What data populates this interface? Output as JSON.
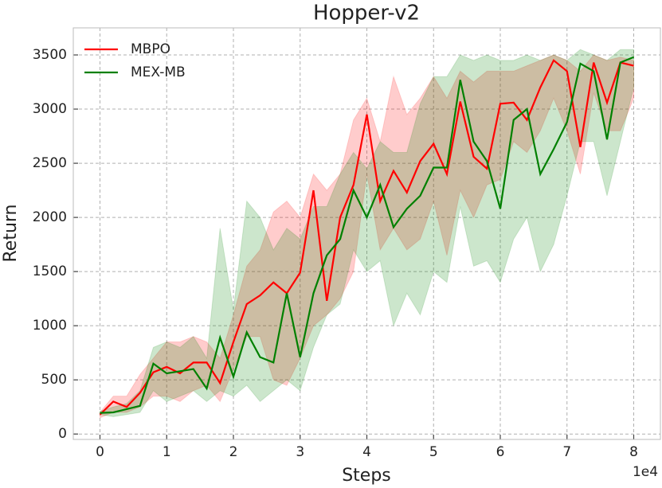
{
  "chart_data": {
    "type": "line",
    "title": "Hopper-v2",
    "x_label": "Steps",
    "y_label": "Return",
    "x_offset_label": "1e4",
    "x": [
      0,
      0.2,
      0.4,
      0.6,
      0.8,
      1.0,
      1.2,
      1.4,
      1.6,
      1.8,
      2.0,
      2.2,
      2.4,
      2.6,
      2.8,
      3.0,
      3.2,
      3.4,
      3.6,
      3.8,
      4.0,
      4.2,
      4.4,
      4.6,
      4.8,
      5.0,
      5.2,
      5.4,
      5.6,
      5.8,
      6.0,
      6.2,
      6.4,
      6.6,
      6.8,
      7.0,
      7.2,
      7.4,
      7.6,
      7.8,
      8.0
    ],
    "series": [
      {
        "name": "MBPO",
        "color": "#ff0000",
        "values": [
          180,
          300,
          250,
          380,
          570,
          620,
          560,
          660,
          660,
          470,
          850,
          1200,
          1280,
          1400,
          1300,
          1490,
          2250,
          1230,
          2000,
          2300,
          2950,
          2150,
          2430,
          2230,
          2520,
          2680,
          2400,
          3070,
          2560,
          2450,
          3050,
          3060,
          2900,
          3200,
          3450,
          3350,
          2650,
          3430,
          3060,
          3430,
          3400
        ],
        "upper": [
          200,
          350,
          350,
          550,
          700,
          850,
          850,
          900,
          850,
          700,
          1100,
          1550,
          1700,
          2050,
          2150,
          2000,
          2400,
          2250,
          2400,
          2900,
          3100,
          2700,
          3300,
          2950,
          3100,
          3300,
          3100,
          3350,
          3250,
          3350,
          3350,
          3350,
          3400,
          3450,
          3500,
          3450,
          3350,
          3500,
          3450,
          3480,
          3450
        ],
        "lower": [
          150,
          200,
          200,
          250,
          350,
          350,
          300,
          400,
          450,
          300,
          600,
          900,
          900,
          500,
          450,
          700,
          1000,
          1100,
          1250,
          1500,
          2400,
          1700,
          1900,
          1700,
          1800,
          2150,
          1650,
          2250,
          2000,
          2300,
          2350,
          2700,
          2600,
          2800,
          3100,
          2800,
          2400,
          3150,
          2800,
          2800,
          3100
        ]
      },
      {
        "name": "MEX-MB",
        "color": "#008000",
        "values": [
          195,
          200,
          230,
          260,
          650,
          560,
          580,
          600,
          420,
          890,
          530,
          940,
          710,
          660,
          1300,
          710,
          1300,
          1650,
          1800,
          2250,
          2000,
          2300,
          1910,
          2080,
          2200,
          2460,
          2460,
          3270,
          2700,
          2520,
          2080,
          2900,
          3000,
          2400,
          2630,
          2880,
          3420,
          3350,
          2720,
          3430,
          3480
        ],
        "upper": [
          210,
          250,
          280,
          400,
          800,
          850,
          800,
          900,
          700,
          1900,
          1150,
          2150,
          2000,
          1700,
          1900,
          1800,
          2100,
          2100,
          2400,
          2600,
          2450,
          2700,
          2600,
          2600,
          3050,
          3300,
          3300,
          3500,
          3450,
          3500,
          3450,
          3450,
          3500,
          3450,
          3500,
          3450,
          3550,
          3500,
          3450,
          3550,
          3550
        ],
        "lower": [
          180,
          160,
          180,
          200,
          400,
          300,
          350,
          400,
          300,
          400,
          350,
          450,
          300,
          400,
          500,
          400,
          800,
          1100,
          1200,
          1700,
          1500,
          1600,
          1000,
          1300,
          1100,
          1500,
          1400,
          2100,
          1550,
          1600,
          1400,
          1800,
          2000,
          1500,
          1750,
          2200,
          2700,
          2700,
          2200,
          2700,
          3200
        ]
      }
    ],
    "xlim": [
      -0.4,
      8.4
    ],
    "xticks": [
      0,
      1,
      2,
      3,
      4,
      5,
      6,
      7,
      8
    ],
    "ylim": [
      -50,
      3750
    ],
    "yticks": [
      0,
      500,
      1000,
      1500,
      2000,
      2500,
      3000,
      3500
    ],
    "grid": true,
    "legend": "upper left"
  }
}
